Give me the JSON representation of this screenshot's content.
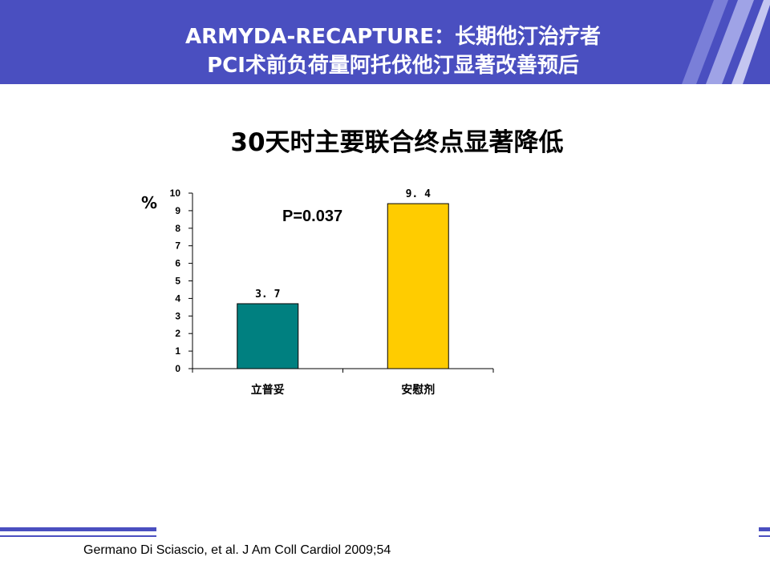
{
  "slide": {
    "title_line1": "ARMYDA-RECAPTURE：长期他汀治疗者",
    "title_line2": "PCI术前负荷量阿托伐他汀显著改善预后",
    "chart_heading": "30天时主要联合终点显著降低",
    "citation": "Germano Di Sciascio, et al. J Am Coll Cardiol 2009;54"
  },
  "colors": {
    "header_bg": "#4a4fc0",
    "bar_clopidogrel": "#008080",
    "bar_placebo": "#ffcc00"
  },
  "chart_data": {
    "type": "bar",
    "title": "30天时主要联合终点显著降低",
    "ylabel": "%",
    "xlabel": "",
    "categories": [
      "立普妥",
      "安慰剂"
    ],
    "values": [
      3.7,
      9.4
    ],
    "value_labels": [
      "3. 7",
      "9. 4"
    ],
    "ylim": [
      0,
      10
    ],
    "yticks": [
      0,
      1,
      2,
      3,
      4,
      5,
      6,
      7,
      8,
      9,
      10
    ],
    "annotation": "P=0.037",
    "grid": false
  }
}
